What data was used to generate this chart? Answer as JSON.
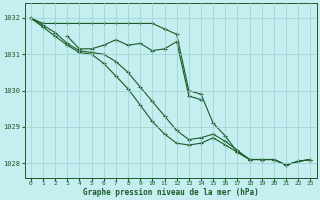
{
  "background_color": "#c4eef0",
  "grid_color": "#a0d0d4",
  "line_color": "#1a5c28",
  "text_color": "#1a5c28",
  "xlabel": "Graphe pression niveau de la mer (hPa)",
  "xlim": [
    -0.5,
    23.5
  ],
  "ylim": [
    1027.6,
    1032.4
  ],
  "yticks": [
    1028,
    1029,
    1030,
    1031,
    1032
  ],
  "xticks": [
    0,
    1,
    2,
    3,
    4,
    5,
    6,
    7,
    8,
    9,
    10,
    11,
    12,
    13,
    14,
    15,
    16,
    17,
    18,
    19,
    20,
    21,
    22,
    23
  ],
  "series": [
    {
      "x": [
        0,
        1,
        2,
        3,
        4,
        5,
        6,
        7,
        8,
        9,
        10,
        11,
        12,
        13,
        14,
        15,
        16,
        17,
        18,
        19,
        20,
        21,
        22,
        23
      ],
      "y": [
        1032.0,
        1031.85,
        1031.85,
        1031.85,
        1031.85,
        1031.85,
        1031.85,
        1031.85,
        1031.85,
        1031.85,
        1031.85,
        1031.7,
        1031.55,
        1030.0,
        1029.9,
        1029.1,
        1028.75,
        1028.3,
        1028.1,
        1028.1,
        1028.1,
        1027.95,
        1028.05,
        1028.1
      ]
    },
    {
      "x": [
        0,
        1,
        2,
        3,
        4,
        5,
        6,
        7,
        8,
        9,
        10,
        11,
        12,
        13,
        14,
        15,
        16,
        17,
        18,
        19,
        20,
        21,
        22,
        23
      ],
      "y": [
        1032.0,
        1031.8,
        1031.6,
        1031.3,
        1031.1,
        1031.05,
        1031.0,
        1030.8,
        1030.5,
        1030.1,
        1029.7,
        1029.3,
        1028.9,
        1028.65,
        1028.7,
        1028.8,
        1028.6,
        1028.35,
        1028.1,
        1028.1,
        1028.1,
        1027.95,
        1028.05,
        1028.1
      ]
    },
    {
      "x": [
        0,
        1,
        2,
        3,
        4,
        5,
        6,
        7,
        8,
        9,
        10,
        11,
        12,
        13,
        14,
        15,
        16,
        17,
        18,
        19,
        20,
        21,
        22,
        23
      ],
      "y": [
        1032.0,
        1031.75,
        1031.5,
        1031.25,
        1031.05,
        1031.0,
        1030.75,
        1030.4,
        1030.05,
        1029.6,
        1029.15,
        1028.8,
        1028.55,
        1028.5,
        1028.55,
        1028.7,
        1028.5,
        1028.3,
        1028.1,
        1028.1,
        1028.1,
        1027.95,
        1028.05,
        1028.1
      ]
    },
    {
      "x": [
        3,
        4,
        5,
        6,
        7,
        8,
        9,
        10,
        11,
        12,
        13,
        14
      ],
      "y": [
        1031.5,
        1031.15,
        1031.15,
        1031.25,
        1031.4,
        1031.25,
        1031.3,
        1031.1,
        1031.15,
        1031.35,
        1029.85,
        1029.75
      ]
    }
  ]
}
